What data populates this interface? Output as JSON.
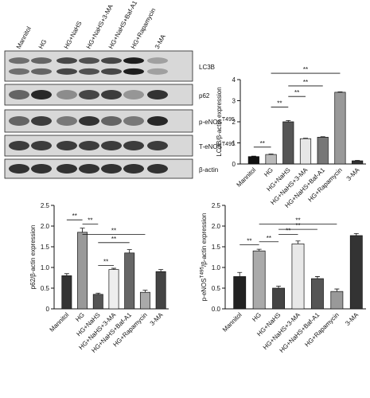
{
  "blot": {
    "lanes": [
      "Mannitol",
      "HG",
      "HG+NaHS",
      "HG+NaHS+3-MA",
      "HG+NaHS+Baf-A1",
      "HG+Rapamycin",
      "3-MA"
    ],
    "rows": [
      "LC3B",
      "p62",
      {
        "text": "p-eNOS",
        "sup": "T495"
      },
      {
        "text": "T-eNOS",
        "sup": "T495"
      },
      "β-actin"
    ]
  },
  "chart_data": [
    {
      "type": "bar",
      "ylabel": "LC3B/β-actin expression",
      "categories": [
        "Mannitol",
        "HG",
        "HG+NaHS",
        "HG+NaHS+3-MA",
        "HG+NaHS+Baf-A1",
        "HG+Rapamycin",
        "3-MA"
      ],
      "values": [
        0.35,
        0.45,
        2.0,
        1.2,
        1.27,
        3.4,
        0.15
      ],
      "errors": [
        0.02,
        0.02,
        0.06,
        0.02,
        0.02,
        0.02,
        0.02
      ],
      "colors": [
        "#111111",
        "#bbbbbb",
        "#555555",
        "#e6e6e6",
        "#777777",
        "#999999",
        "#333333"
      ],
      "ylim": [
        0,
        4
      ],
      "yticks": [
        0,
        1,
        2,
        3,
        4
      ],
      "annotations": [
        "**",
        "**",
        "**",
        "**",
        "**"
      ]
    },
    {
      "type": "bar",
      "ylabel": "p62/β-actin expression",
      "categories": [
        "Mannitol",
        "HG",
        "HG+NaHS",
        "HG+NaHS+3-MA",
        "HG+NaHS+Baf-A1",
        "HG+Rapamycin",
        "3-MA"
      ],
      "values": [
        0.8,
        1.85,
        0.35,
        0.95,
        1.35,
        0.4,
        0.9
      ],
      "errors": [
        0.05,
        0.1,
        0.03,
        0.03,
        0.08,
        0.05,
        0.05
      ],
      "colors": [
        "#333333",
        "#999999",
        "#555555",
        "#eeeeee",
        "#666666",
        "#aaaaaa",
        "#444444"
      ],
      "ylim": [
        0,
        2.5
      ],
      "yticks": [
        0,
        0.5,
        {
          "value": 1,
          "label": "1.0"
        },
        1.5,
        {
          "value": 2,
          "label": "2.0"
        },
        2.5
      ],
      "annotations": [
        "**",
        "**",
        "**",
        "**",
        "**"
      ]
    },
    {
      "type": "bar",
      "ylabel": {
        "text": "p-eNOS",
        "sup": "T495",
        "after": "/β-actin expression"
      },
      "categories": [
        "Mannitol",
        "HG",
        "HG+NaHS",
        "HG+NaHS+3-MA",
        "HG+NaHS+Baf-A1",
        "HG+Rapamycin",
        "3-MA"
      ],
      "values": [
        0.78,
        1.4,
        0.5,
        1.57,
        0.73,
        0.42,
        1.77
      ],
      "errors": [
        0.1,
        0.04,
        0.05,
        0.07,
        0.05,
        0.06,
        0.05
      ],
      "colors": [
        "#222222",
        "#aaaaaa",
        "#444444",
        "#e8e8e8",
        "#555555",
        "#999999",
        "#333333"
      ],
      "ylim": [
        0,
        2.5
      ],
      "yticks": [
        {
          "value": 0,
          "label": "0.0"
        },
        0.5,
        {
          "value": 1,
          "label": "1.0"
        },
        1.5,
        {
          "value": 2,
          "label": "2.0"
        },
        2.5
      ],
      "annotations": [
        "**",
        "**",
        "**",
        "**",
        "**"
      ]
    }
  ]
}
